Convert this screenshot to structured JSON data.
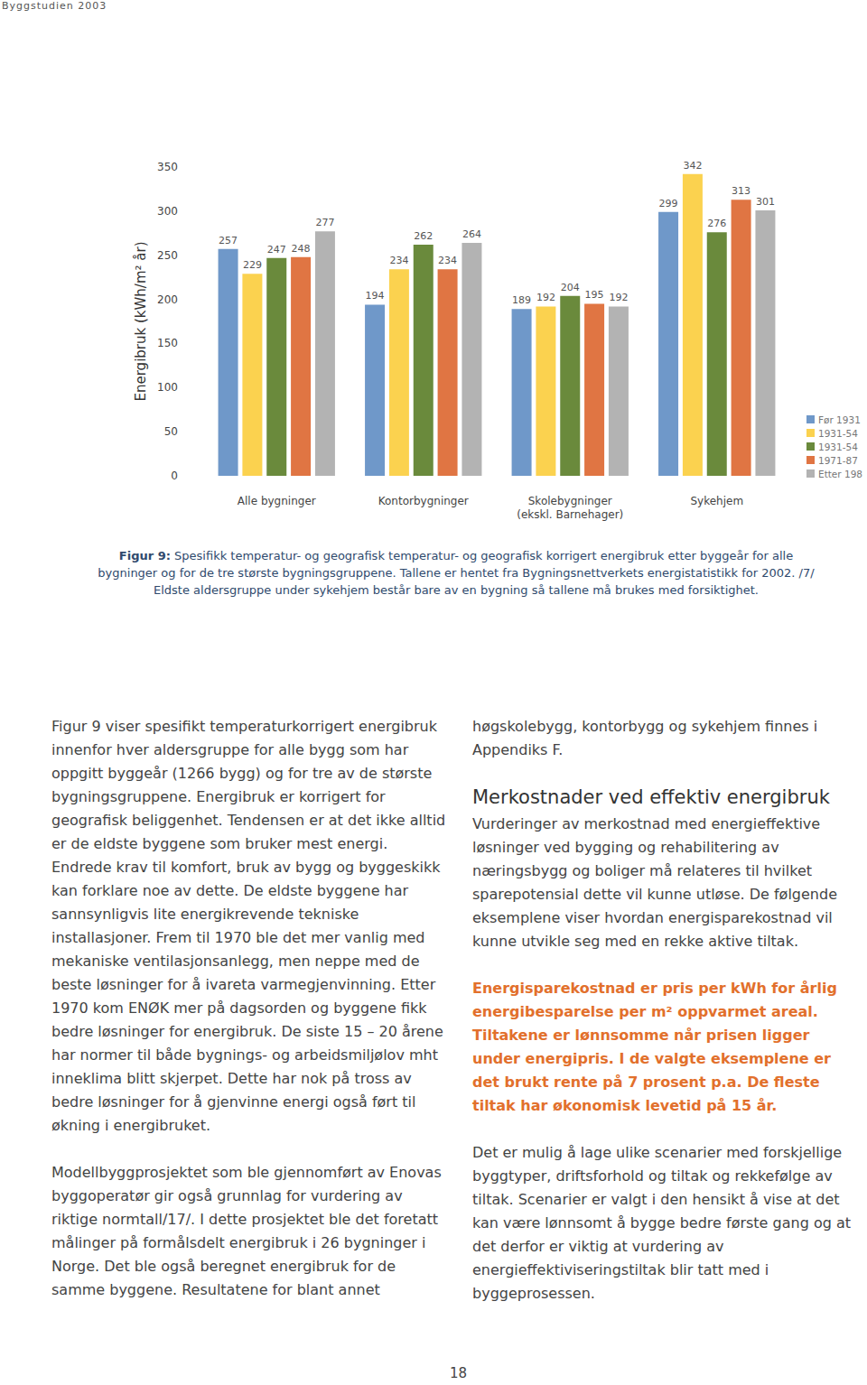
{
  "header": "Byggstudien 2003",
  "chart_data": {
    "type": "bar",
    "y_label": "Energibruk (kWh/m² år)",
    "categories": [
      "Alle bygninger",
      "Kontorbygninger",
      "Skolebygninger\n(ekskl. Barnehager)",
      "Sykehjem"
    ],
    "series": [
      {
        "name": "Før 1931",
        "color": "#6f98c9",
        "values": [
          257,
          194,
          189,
          299
        ]
      },
      {
        "name": "1931-54",
        "color": "#fbd24f",
        "values": [
          229,
          234,
          192,
          342
        ]
      },
      {
        "name": "1931-54",
        "color": "#6a8a3c",
        "values": [
          247,
          262,
          204,
          276
        ]
      },
      {
        "name": "1971-87",
        "color": "#e07543",
        "values": [
          248,
          234,
          195,
          313
        ]
      },
      {
        "name": "Etter 198",
        "color": "#b3b3b3",
        "values": [
          277,
          264,
          192,
          301
        ]
      }
    ],
    "ylim": [
      0,
      350
    ],
    "yticks": [
      0,
      50,
      100,
      150,
      200,
      250,
      300,
      350
    ],
    "grid": false,
    "data_labels": true,
    "legend": "right"
  },
  "figure_caption": {
    "label": "Figur 9:",
    "text": "Spesifikk temperatur- og geografisk temperatur- og geografisk korrigert energibruk etter byggeår for alle bygninger og for de tre største bygningsgruppene. Tallene er hentet fra Bygningsnettverkets energistatistikk for 2002. /7/ Eldste aldersgruppe under sykehjem består bare av en bygning så tallene må brukes med forsiktighet."
  },
  "columns": [
    [
      {
        "kind": "p",
        "text": "Figur 9 viser spesifikt temperaturkorrigert energibruk innenfor hver aldersgruppe for alle bygg som har oppgitt byggeår (1266 bygg) og for tre av de største bygningsgruppene. Energibruk er korrigert for geografisk beliggenhet. Tendensen er at det ikke alltid er de eldste byggene som bruker mest energi. Endrede krav til komfort, bruk av bygg og byggeskikk kan forklare noe av dette. De eldste byggene har sannsynligvis lite energikrevende tekniske installasjoner. Frem til 1970 ble det mer vanlig med mekaniske ventilasjonsanlegg, men neppe med de beste løsninger for å ivareta varmegjenvinning. Etter 1970 kom ENØK mer på dagsorden og byggene fikk bedre løsninger for energibruk. De siste 15 – 20 årene har normer til både bygnings- og arbeidsmiljølov mht inneklima blitt skjerpet. Dette har nok på tross av bedre løsninger for å gjenvinne energi også ført til økning i energibruket."
      },
      {
        "kind": "p",
        "text": "Modellbyggprosjektet som ble gjennomført av Enovas byggoperatør gir også grunnlag for vurdering av riktige normtall/17/. I dette prosjektet ble det foretatt målinger på formålsdelt energibruk i 26 bygninger i Norge. Det ble også beregnet energibruk for de samme byggene. Resultatene for blant annet"
      }
    ],
    [
      {
        "kind": "p",
        "text": "høgskolebygg, kontorbygg og sykehjem finnes i Appendiks F."
      },
      {
        "kind": "h",
        "text": "Merkostnader ved effektiv energibruk"
      },
      {
        "kind": "p",
        "text": "Vurderinger av merkostnad med energieffektive løsninger ved bygging og rehabilitering av næringsbygg og boliger må relateres til hvilket sparepotensial dette vil kunne utløse. De følgende eksemplene viser hvordan energisparekostnad vil kunne utvikle seg med en rekke aktive tiltak."
      },
      {
        "kind": "em",
        "text": "Energisparekostnad er pris per kWh for årlig energibesparelse per m² oppvarmet areal. Tiltakene er lønnsomme når prisen ligger under energipris. I de valgte eksemplene er det brukt rente på 7 prosent p.a. De fleste tiltak har økonomisk levetid på 15 år."
      },
      {
        "kind": "p",
        "text": "Det er mulig å lage ulike scenarier med forskjellige byggtyper, driftsforhold og tiltak og rekkefølge av tiltak. Scenarier er valgt i den hensikt å vise at det kan være lønnsomt å bygge bedre første gang og at det derfor er viktig at vurdering av energieffektiviseringstiltak blir tatt med i byggeprosessen."
      }
    ]
  ],
  "page_number": "18"
}
